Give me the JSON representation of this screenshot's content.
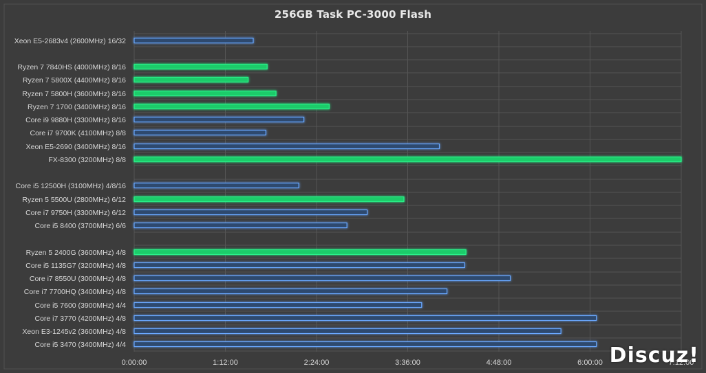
{
  "chart_data": {
    "type": "bar",
    "orientation": "horizontal",
    "title": "256GB Task PC-3000 Flash",
    "xlabel": "",
    "ylabel": "",
    "xlim_seconds": [
      0,
      25920
    ],
    "x_ticks": [
      "0:00:00",
      "1:12:00",
      "2:24:00",
      "3:36:00",
      "4:48:00",
      "6:00:00",
      "7:12:00"
    ],
    "grid": true,
    "legend": "none",
    "colors": {
      "amd": "#1fcc6a",
      "intel": "#3f7fd0",
      "background": "#3c3c3c",
      "grid": "#555555",
      "text": "#d8d8d8"
    },
    "bars": [
      {
        "label": "Xeon E5-2683v4 (2600MHz) 16/32",
        "seconds": 5640,
        "vendor": "intel"
      },
      {
        "label": "Ryzen 7 7840HS (4000MHz)   8/16",
        "seconds": 6300,
        "vendor": "amd"
      },
      {
        "label": "Ryzen 7 5800X (4400MHz)   8/16",
        "seconds": 5400,
        "vendor": "amd"
      },
      {
        "label": "Ryzen 7 5800H (3600MHz)   8/16",
        "seconds": 6720,
        "vendor": "amd"
      },
      {
        "label": "Ryzen 7 1700 (3400MHz)     8/16",
        "seconds": 9240,
        "vendor": "amd"
      },
      {
        "label": "Core i9 9880H (3300MHz)   8/16",
        "seconds": 8040,
        "vendor": "intel"
      },
      {
        "label": "Core i7 9700K (4100MHz)   8/8",
        "seconds": 6240,
        "vendor": "intel"
      },
      {
        "label": "Xeon E5-2690 (3400MHz)  8/16",
        "seconds": 14460,
        "vendor": "intel"
      },
      {
        "label": "FX-8300 (3200MHz) 8/8",
        "seconds": 26760,
        "vendor": "amd"
      },
      {
        "label": "Core i5 12500H (3100MHz)   4/8/16",
        "seconds": 7800,
        "vendor": "intel"
      },
      {
        "label": "Ryzen 5 5500U  (2800MHz)   6/12",
        "seconds": 12780,
        "vendor": "amd"
      },
      {
        "label": "Core i7 9750H  (3300MHz)   6/12",
        "seconds": 11040,
        "vendor": "intel"
      },
      {
        "label": "Core i5 8400    (3700MHz)   6/6",
        "seconds": 10080,
        "vendor": "intel"
      },
      {
        "label": "Ryzen 5 2400G  (3600MHz)   4/8",
        "seconds": 15720,
        "vendor": "amd"
      },
      {
        "label": "Core i5 1135G7 (3200MHz)   4/8",
        "seconds": 15660,
        "vendor": "intel"
      },
      {
        "label": "Core i7 8550U  (3000MHz)   4/8",
        "seconds": 17820,
        "vendor": "intel"
      },
      {
        "label": "Core i7 7700HQ (3400MHz)   4/8",
        "seconds": 14820,
        "vendor": "intel"
      },
      {
        "label": "Core i5 7600    (3900MHz)   4/4",
        "seconds": 13620,
        "vendor": "intel"
      },
      {
        "label": "Core i7 3770     (4200MHz)   4/8",
        "seconds": 21900,
        "vendor": "intel"
      },
      {
        "label": "Xeon E3-1245v2  (3600MHz)   4/8",
        "seconds": 20220,
        "vendor": "intel"
      },
      {
        "label": "Core i5 3470     (3400MHz)   4/4",
        "seconds": 21900,
        "vendor": "intel"
      }
    ]
  },
  "watermark": "Discuz!"
}
